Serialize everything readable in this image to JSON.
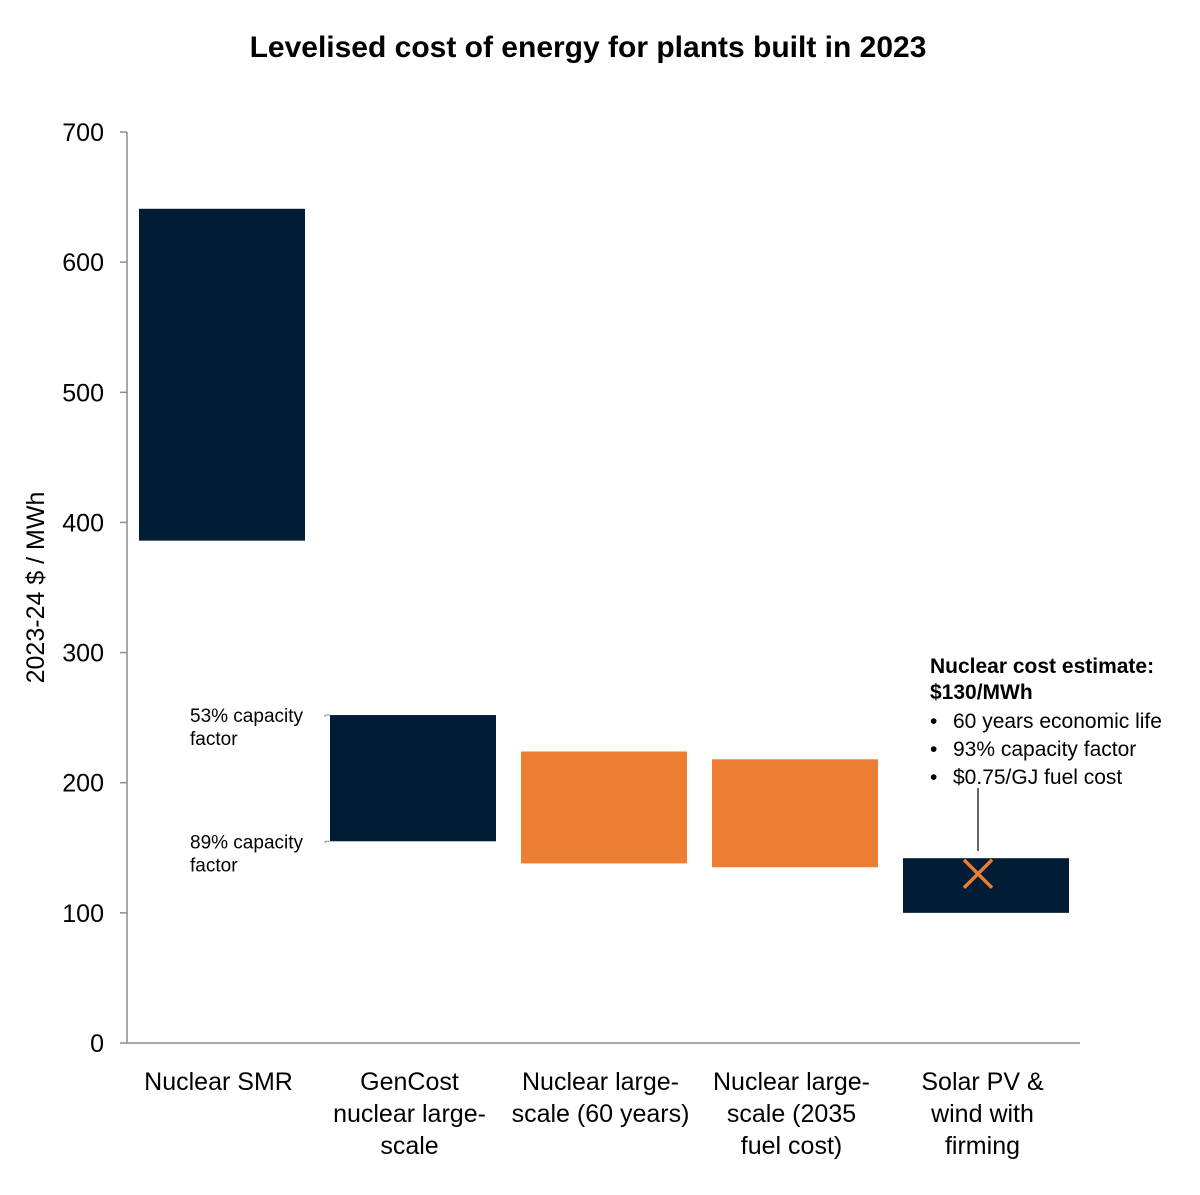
{
  "chart_data": {
    "type": "bar",
    "title": "Levelised cost of energy for plants built in 2023",
    "ylabel": "2023-24 $ / MWh",
    "xlabel": "",
    "ylim": [
      0,
      700
    ],
    "yticks": [
      0,
      100,
      200,
      300,
      400,
      500,
      600,
      700
    ],
    "grid": false,
    "bars": [
      {
        "category": [
          "Nuclear SMR"
        ],
        "low": 386,
        "high": 641,
        "color": "#001d35"
      },
      {
        "category": [
          "GenCost",
          "nuclear large-",
          "scale"
        ],
        "low": 155,
        "high": 252,
        "color": "#001d35"
      },
      {
        "category": [
          "Nuclear large-",
          "scale (60 years)"
        ],
        "low": 138,
        "high": 224,
        "color": "#ed7d31"
      },
      {
        "category": [
          "Nuclear large-",
          "scale (2035",
          "fuel cost)"
        ],
        "low": 135,
        "high": 218,
        "color": "#ed7d31"
      },
      {
        "category": [
          "Solar PV &",
          "wind with",
          "firming"
        ],
        "low": 100,
        "high": 142,
        "color": "#001d35"
      }
    ],
    "bar_notes": [
      {
        "text": [
          "53% capacity",
          "factor"
        ],
        "value": 252
      },
      {
        "text": [
          "89% capacity",
          "factor"
        ],
        "value": 155
      }
    ],
    "marker": {
      "category_index": 4,
      "value": 130,
      "symbol": "x",
      "color": "#ed7d31"
    },
    "annotation": {
      "title": [
        "Nuclear cost estimate:",
        "$130/MWh"
      ],
      "bullets": [
        "60 years economic life",
        "93% capacity factor",
        "$0.75/GJ fuel cost"
      ]
    }
  }
}
